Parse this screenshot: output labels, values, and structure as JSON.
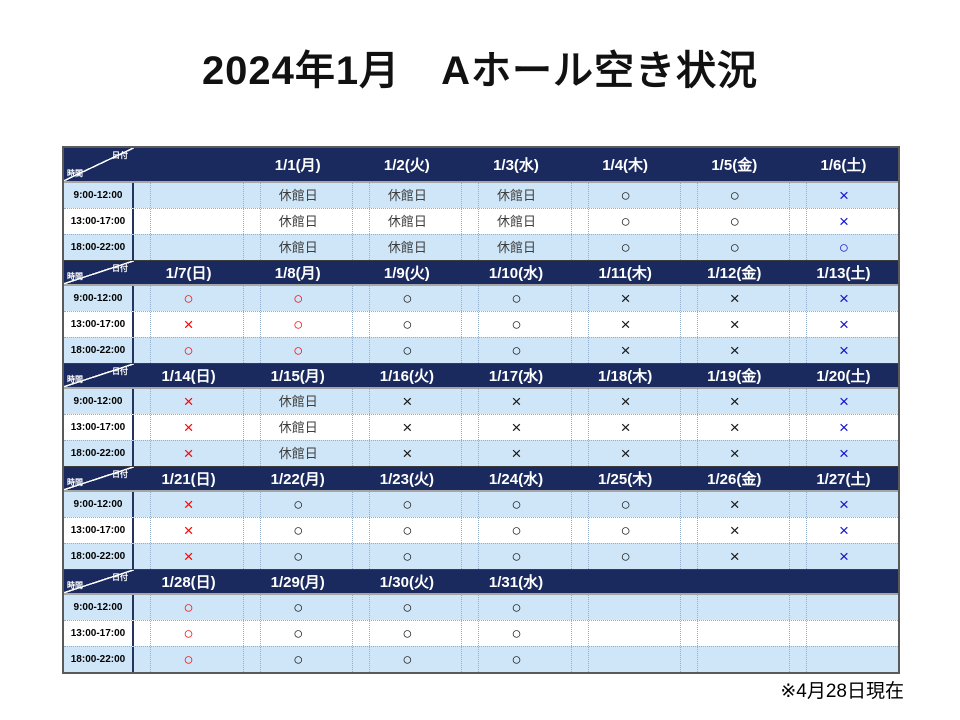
{
  "title": "2024年1月　Aホール空き状況",
  "footnote": "※4月28日現在",
  "corner": {
    "date_label": "日付",
    "time_label": "時間"
  },
  "time_slots": [
    "9:00-12:00",
    "13:00-17:00",
    "18:00-22:00"
  ],
  "symbols": {
    "available": "○",
    "unavailable": "×",
    "closed": "休館日"
  },
  "colors": {
    "header_bg": "#1A2A5E",
    "striped_row_bg": "#CEE6F7",
    "plain_row_bg": "#FFFFFF",
    "sunday_holiday_symbol": "#FF0000",
    "saturday_symbol": "#1010CF",
    "weekday_symbol": "#161616",
    "closed_text": "#3F3F3F"
  },
  "weeks": [
    {
      "days": [
        {
          "date": "",
          "tone": "empty",
          "slots": [
            "",
            "",
            ""
          ]
        },
        {
          "date": "1/1(月)",
          "tone": "closed",
          "slots": [
            "休館日",
            "休館日",
            "休館日"
          ]
        },
        {
          "date": "1/2(火)",
          "tone": "closed",
          "slots": [
            "休館日",
            "休館日",
            "休館日"
          ]
        },
        {
          "date": "1/3(水)",
          "tone": "closed",
          "slots": [
            "休館日",
            "休館日",
            "休館日"
          ]
        },
        {
          "date": "1/4(木)",
          "tone": "black",
          "slots": [
            "○",
            "○",
            "○"
          ]
        },
        {
          "date": "1/5(金)",
          "tone": "black",
          "slots": [
            "○",
            "○",
            "○"
          ]
        },
        {
          "date": "1/6(土)",
          "tone": "blue",
          "slots": [
            "×",
            "×",
            "○"
          ]
        }
      ]
    },
    {
      "days": [
        {
          "date": "1/7(日)",
          "tone": "red",
          "slots": [
            "○",
            "×",
            "○"
          ]
        },
        {
          "date": "1/8(月)",
          "tone": "red",
          "slots": [
            "○",
            "○",
            "○"
          ]
        },
        {
          "date": "1/9(火)",
          "tone": "black",
          "slots": [
            "○",
            "○",
            "○"
          ]
        },
        {
          "date": "1/10(水)",
          "tone": "black",
          "slots": [
            "○",
            "○",
            "○"
          ]
        },
        {
          "date": "1/11(木)",
          "tone": "black",
          "slots": [
            "×",
            "×",
            "×"
          ]
        },
        {
          "date": "1/12(金)",
          "tone": "black",
          "slots": [
            "×",
            "×",
            "×"
          ]
        },
        {
          "date": "1/13(土)",
          "tone": "blue",
          "slots": [
            "×",
            "×",
            "×"
          ]
        }
      ]
    },
    {
      "days": [
        {
          "date": "1/14(日)",
          "tone": "red",
          "slots": [
            "×",
            "×",
            "×"
          ]
        },
        {
          "date": "1/15(月)",
          "tone": "closed",
          "slots": [
            "休館日",
            "休館日",
            "休館日"
          ]
        },
        {
          "date": "1/16(火)",
          "tone": "black",
          "slots": [
            "×",
            "×",
            "×"
          ]
        },
        {
          "date": "1/17(水)",
          "tone": "black",
          "slots": [
            "×",
            "×",
            "×"
          ]
        },
        {
          "date": "1/18(木)",
          "tone": "black",
          "slots": [
            "×",
            "×",
            "×"
          ]
        },
        {
          "date": "1/19(金)",
          "tone": "black",
          "slots": [
            "×",
            "×",
            "×"
          ]
        },
        {
          "date": "1/20(土)",
          "tone": "blue",
          "slots": [
            "×",
            "×",
            "×"
          ]
        }
      ]
    },
    {
      "days": [
        {
          "date": "1/21(日)",
          "tone": "red",
          "slots": [
            "×",
            "×",
            "×"
          ]
        },
        {
          "date": "1/22(月)",
          "tone": "black",
          "slots": [
            "○",
            "○",
            "○"
          ]
        },
        {
          "date": "1/23(火)",
          "tone": "black",
          "slots": [
            "○",
            "○",
            "○"
          ]
        },
        {
          "date": "1/24(水)",
          "tone": "black",
          "slots": [
            "○",
            "○",
            "○"
          ]
        },
        {
          "date": "1/25(木)",
          "tone": "black",
          "slots": [
            "○",
            "○",
            "○"
          ]
        },
        {
          "date": "1/26(金)",
          "tone": "black",
          "slots": [
            "×",
            "×",
            "×"
          ]
        },
        {
          "date": "1/27(土)",
          "tone": "blue",
          "slots": [
            "×",
            "×",
            "×"
          ]
        }
      ]
    },
    {
      "days": [
        {
          "date": "1/28(日)",
          "tone": "red",
          "slots": [
            "○",
            "○",
            "○"
          ]
        },
        {
          "date": "1/29(月)",
          "tone": "black",
          "slots": [
            "○",
            "○",
            "○"
          ]
        },
        {
          "date": "1/30(火)",
          "tone": "black",
          "slots": [
            "○",
            "○",
            "○"
          ]
        },
        {
          "date": "1/31(水)",
          "tone": "black",
          "slots": [
            "○",
            "○",
            "○"
          ]
        },
        {
          "date": "",
          "tone": "empty",
          "slots": [
            "",
            "",
            ""
          ]
        },
        {
          "date": "",
          "tone": "empty",
          "slots": [
            "",
            "",
            ""
          ]
        },
        {
          "date": "",
          "tone": "empty",
          "slots": [
            "",
            "",
            ""
          ]
        }
      ]
    }
  ]
}
